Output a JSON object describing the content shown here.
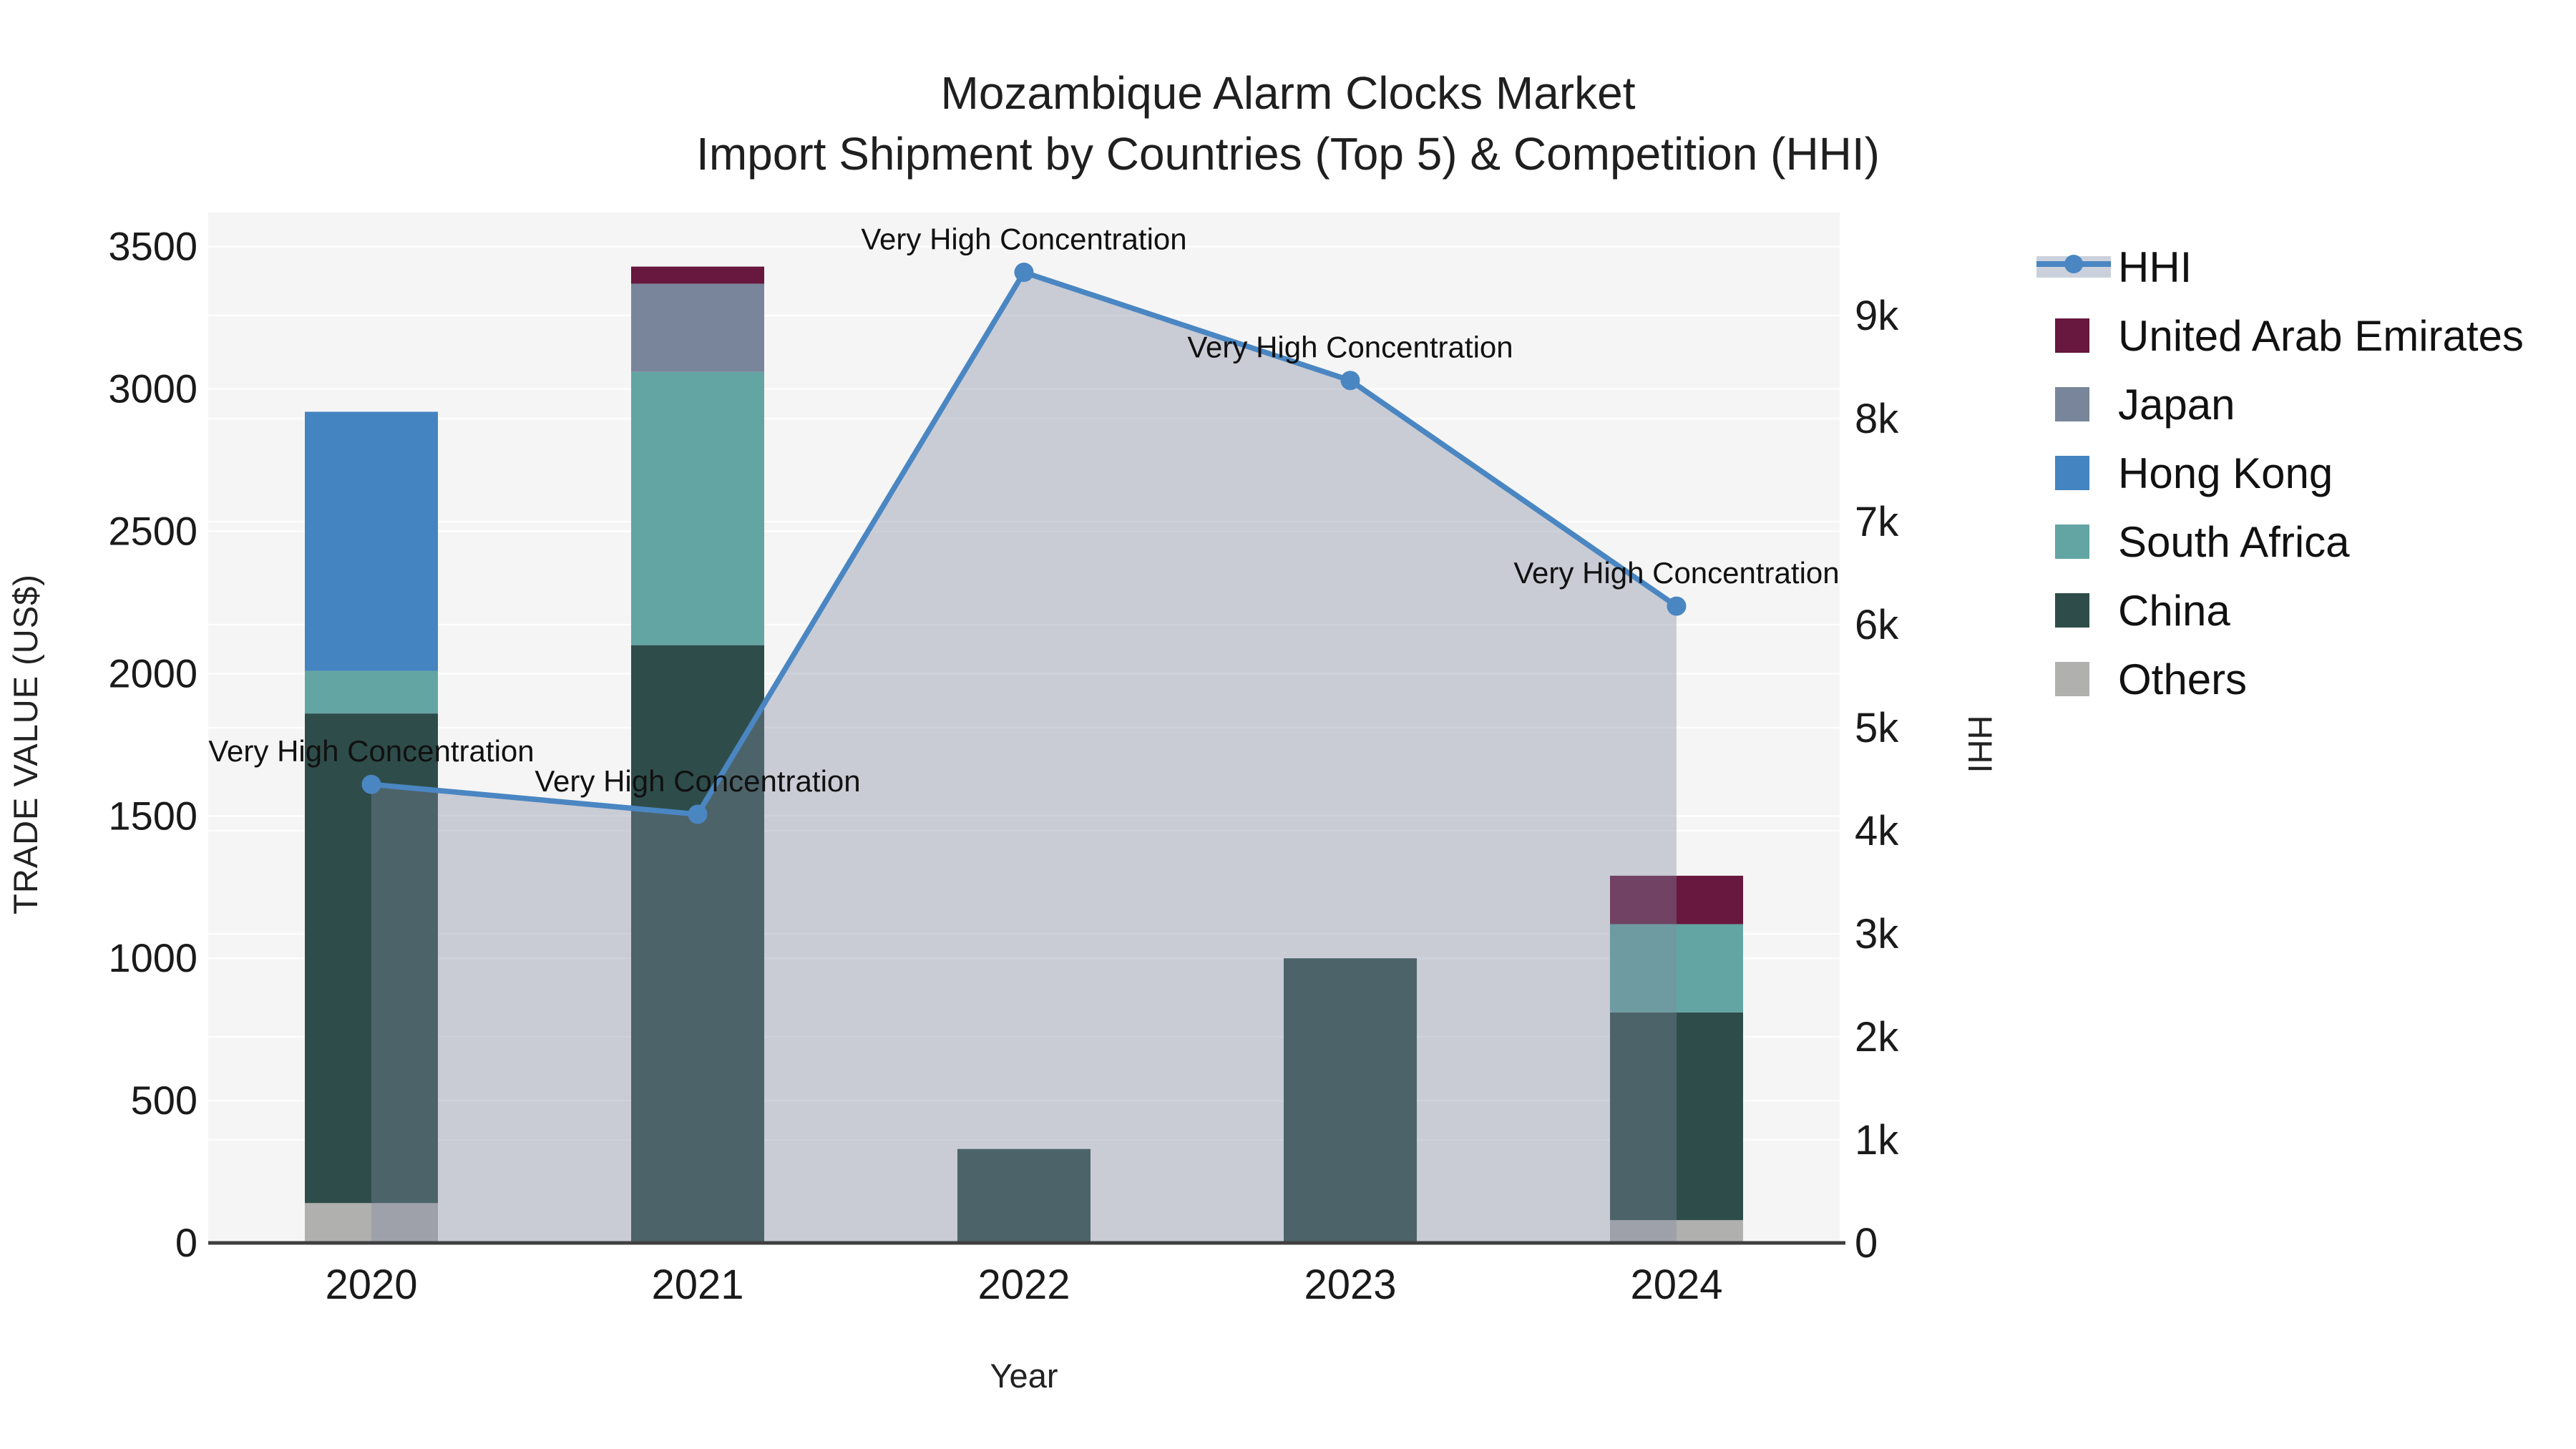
{
  "title": {
    "line1": "Mozambique Alarm Clocks Market",
    "line2": "Import Shipment by Countries (Top 5) & Competition (HHI)"
  },
  "axes": {
    "x": {
      "title": "Year",
      "tick_labels": [
        "2020",
        "2021",
        "2022",
        "2023",
        "2024"
      ]
    },
    "y_left": {
      "title": "TRADE VALUE (US$)",
      "tick_labels": [
        "0",
        "500",
        "1000",
        "1500",
        "2000",
        "2500",
        "3000",
        "3500"
      ],
      "tick_values": [
        0,
        500,
        1000,
        1500,
        2000,
        2500,
        3000,
        3500
      ],
      "range": [
        0,
        3620
      ]
    },
    "y_right": {
      "title": "HHI",
      "tick_labels": [
        "0",
        "1k",
        "2k",
        "3k",
        "4k",
        "5k",
        "6k",
        "7k",
        "8k",
        "9k"
      ],
      "tick_values": [
        0,
        1000,
        2000,
        3000,
        4000,
        5000,
        6000,
        7000,
        8000,
        9000
      ],
      "range": [
        0,
        10000
      ]
    }
  },
  "legend": {
    "items": [
      {
        "label": "HHI",
        "type": "line",
        "color": "#4a86c2",
        "band_color": "#cbd1dc"
      },
      {
        "label": "United Arab Emirates",
        "type": "swatch",
        "color": "#68173e"
      },
      {
        "label": "Japan",
        "type": "swatch",
        "color": "#78859a"
      },
      {
        "label": "Hong Kong",
        "type": "swatch",
        "color": "#4484c1"
      },
      {
        "label": "South Africa",
        "type": "swatch",
        "color": "#63a5a3"
      },
      {
        "label": "China",
        "type": "swatch",
        "color": "#2e4d4a"
      },
      {
        "label": "Others",
        "type": "swatch",
        "color": "#b0b0ae"
      }
    ]
  },
  "chart_data": {
    "type": "combo_stacked_bar_line",
    "title": "Mozambique Alarm Clocks Market — Import Shipment by Countries (Top 5) & Competition (HHI)",
    "xlabel": "Year",
    "ylabel_left": "TRADE VALUE (US$)",
    "ylabel_right": "HHI",
    "categories": [
      "2020",
      "2021",
      "2022",
      "2023",
      "2024"
    ],
    "bar_series_stack_bottom_to_top": [
      {
        "name": "Others",
        "color": "#b0b0ae",
        "values": [
          140,
          0,
          0,
          0,
          80
        ]
      },
      {
        "name": "China",
        "color": "#2e4d4a",
        "values": [
          1720,
          2100,
          330,
          1000,
          730
        ]
      },
      {
        "name": "South Africa",
        "color": "#63a5a3",
        "values": [
          150,
          960,
          0,
          0,
          310
        ]
      },
      {
        "name": "Hong Kong",
        "color": "#4484c1",
        "values": [
          910,
          0,
          0,
          0,
          0
        ]
      },
      {
        "name": "Japan",
        "color": "#78859a",
        "values": [
          0,
          310,
          0,
          0,
          0
        ]
      },
      {
        "name": "United Arab Emirates",
        "color": "#68173e",
        "values": [
          0,
          60,
          0,
          0,
          170
        ]
      }
    ],
    "bar_totals": [
      2920,
      3430,
      330,
      1000,
      1290
    ],
    "line_series": {
      "name": "HHI",
      "color": "#4a86c2",
      "area_fill": "rgba(130,138,160,0.38)",
      "values": [
        4450,
        4160,
        9420,
        8370,
        6180
      ],
      "annotations": [
        "Very High Concentration",
        "Very High Concentration",
        "Very High Concentration",
        "Very High Concentration",
        "Very High Concentration"
      ]
    },
    "ylim_left": [
      0,
      3620
    ],
    "ylim_right": [
      0,
      10000
    ],
    "grid": true,
    "legend_position": "right",
    "plot_background": "#f5f5f5",
    "gridline_color": "rgba(255,255,255,0.9)"
  }
}
